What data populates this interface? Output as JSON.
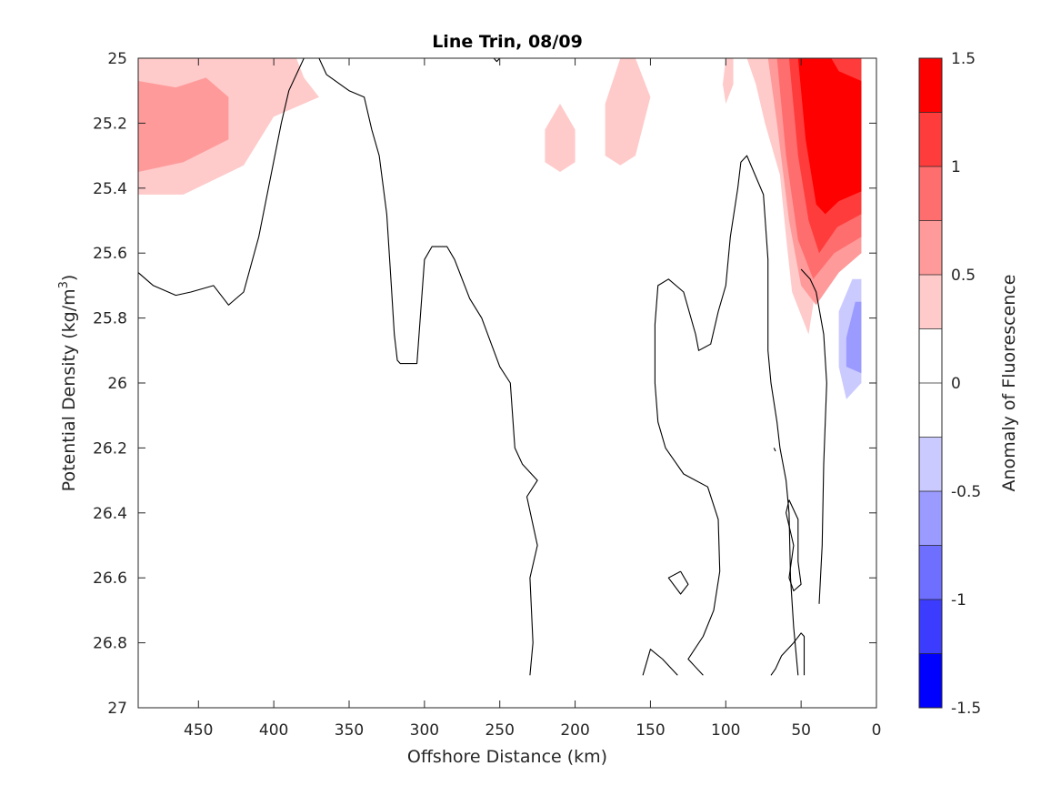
{
  "chart_data": {
    "type": "contour",
    "title": "Line Trin, 08/09",
    "xlabel": "Offshore Distance (km)",
    "ylabel": "Potential Density (kg/m",
    "ylabel_sup": "3",
    "ylabel_close": ")",
    "xlim": [
      490,
      0
    ],
    "x_reversed": true,
    "ylim": [
      25,
      27
    ],
    "y_reversed": true,
    "xticks": [
      450,
      400,
      350,
      300,
      250,
      200,
      150,
      100,
      50,
      0
    ],
    "yticks": [
      25,
      25.2,
      25.4,
      25.6,
      25.8,
      26,
      26.2,
      26.4,
      26.6,
      26.8,
      27
    ],
    "colorbar": {
      "label": "Anomaly of Fluorescence",
      "range": [
        -1.5,
        1.5
      ],
      "ticks": [
        1.5,
        1,
        0.5,
        0,
        -0.5,
        -1,
        -1.5
      ],
      "levels": [
        {
          "from": 1.25,
          "to": 1.5,
          "color": "#ff0000"
        },
        {
          "from": 1.0,
          "to": 1.25,
          "color": "#ff3c3c"
        },
        {
          "from": 0.75,
          "to": 1.0,
          "color": "#ff6e6e"
        },
        {
          "from": 0.5,
          "to": 0.75,
          "color": "#ff9a9a"
        },
        {
          "from": 0.25,
          "to": 0.5,
          "color": "#ffcaca"
        },
        {
          "from": 0.0,
          "to": 0.25,
          "color": "#ffffff"
        },
        {
          "from": -0.25,
          "to": 0.0,
          "color": "#ffffff"
        },
        {
          "from": -0.5,
          "to": -0.25,
          "color": "#cacaff"
        },
        {
          "from": -0.75,
          "to": -0.5,
          "color": "#9a9aff"
        },
        {
          "from": -1.0,
          "to": -0.75,
          "color": "#6e6eff"
        },
        {
          "from": -1.25,
          "to": -1.0,
          "color": "#3c3cff"
        },
        {
          "from": -1.5,
          "to": -1.25,
          "color": "#0000ff"
        }
      ]
    },
    "filled_regions": [
      {
        "level": 0.25,
        "color": "#ffcaca",
        "points": [
          [
            490,
            25
          ],
          [
            385,
            25
          ],
          [
            380,
            25.06
          ],
          [
            370,
            25.12
          ],
          [
            400,
            25.18
          ],
          [
            420,
            25.33
          ],
          [
            460,
            25.42
          ],
          [
            490,
            25.42
          ]
        ]
      },
      {
        "level": 0.5,
        "color": "#ff9a9a",
        "points": [
          [
            490,
            25.07
          ],
          [
            465,
            25.09
          ],
          [
            445,
            25.06
          ],
          [
            430,
            25.12
          ],
          [
            430,
            25.25
          ],
          [
            460,
            25.32
          ],
          [
            490,
            25.35
          ]
        ]
      },
      {
        "level": 0.25,
        "color": "#ffcaca",
        "points": [
          [
            220,
            25.22
          ],
          [
            210,
            25.14
          ],
          [
            200,
            25.22
          ],
          [
            200,
            25.32
          ],
          [
            210,
            25.35
          ],
          [
            220,
            25.32
          ]
        ]
      },
      {
        "level": 0.25,
        "color": "#ffcaca",
        "points": [
          [
            180,
            25.3
          ],
          [
            180,
            25.14
          ],
          [
            170,
            25.0
          ],
          [
            160,
            25.0
          ],
          [
            150,
            25.12
          ],
          [
            160,
            25.3
          ],
          [
            170,
            25.33
          ]
        ]
      },
      {
        "level": 0.25,
        "color": "#ffcaca",
        "points": [
          [
            95,
            25.0
          ],
          [
            100,
            25.0
          ],
          [
            102,
            25.08
          ],
          [
            100,
            25.14
          ],
          [
            95,
            25.08
          ]
        ]
      },
      {
        "level": 0.25,
        "color": "#ffcaca",
        "points": [
          [
            86,
            25.0
          ],
          [
            80,
            25.08
          ],
          [
            74,
            25.2
          ],
          [
            64,
            25.36
          ],
          [
            60,
            25.55
          ],
          [
            56,
            25.72
          ],
          [
            45,
            25.85
          ],
          [
            40,
            25.7
          ],
          [
            30,
            25.62
          ],
          [
            18,
            25.62
          ],
          [
            10,
            25.6
          ],
          [
            10,
            25.0
          ]
        ]
      },
      {
        "level": 0.5,
        "color": "#ff9a9a",
        "points": [
          [
            72,
            25.0
          ],
          [
            66,
            25.2
          ],
          [
            58,
            25.5
          ],
          [
            50,
            25.7
          ],
          [
            40,
            25.76
          ],
          [
            25,
            25.66
          ],
          [
            10,
            25.6
          ],
          [
            10,
            25.0
          ]
        ]
      },
      {
        "level": 0.75,
        "color": "#ff6e6e",
        "points": [
          [
            66,
            25.0
          ],
          [
            60,
            25.3
          ],
          [
            52,
            25.56
          ],
          [
            42,
            25.68
          ],
          [
            28,
            25.6
          ],
          [
            10,
            25.55
          ],
          [
            10,
            25.0
          ]
        ]
      },
      {
        "level": 1.0,
        "color": "#ff3c3c",
        "points": [
          [
            58,
            25.0
          ],
          [
            52,
            25.3
          ],
          [
            45,
            25.5
          ],
          [
            38,
            25.6
          ],
          [
            26,
            25.52
          ],
          [
            10,
            25.48
          ],
          [
            10,
            25.0
          ]
        ]
      },
      {
        "level": 1.25,
        "color": "#ff0000",
        "points": [
          [
            52,
            25.0
          ],
          [
            47,
            25.25
          ],
          [
            40,
            25.45
          ],
          [
            34,
            25.48
          ],
          [
            25,
            25.44
          ],
          [
            10,
            25.41
          ],
          [
            10,
            25.07
          ],
          [
            20,
            25.05
          ],
          [
            25,
            25.04
          ],
          [
            30,
            25.0
          ]
        ]
      },
      {
        "level": -0.25,
        "color": "#cacaff",
        "points": [
          [
            16,
            25.68
          ],
          [
            25,
            25.78
          ],
          [
            25,
            25.95
          ],
          [
            20,
            26.05
          ],
          [
            10,
            26.0
          ],
          [
            10,
            25.68
          ]
        ]
      },
      {
        "level": -0.5,
        "color": "#9a9aff",
        "points": [
          [
            14,
            25.75
          ],
          [
            20,
            25.86
          ],
          [
            20,
            25.95
          ],
          [
            10,
            25.97
          ],
          [
            10,
            25.75
          ]
        ]
      }
    ],
    "contour_lines": [
      {
        "level": 0,
        "points": [
          [
            490,
            25.66
          ],
          [
            480,
            25.7
          ],
          [
            465,
            25.73
          ],
          [
            455,
            25.72
          ],
          [
            440,
            25.7
          ],
          [
            430,
            25.76
          ],
          [
            420,
            25.72
          ],
          [
            410,
            25.55
          ],
          [
            395,
            25.2
          ],
          [
            390,
            25.1
          ],
          [
            380,
            25.0
          ],
          [
            370,
            25.0
          ],
          [
            365,
            25.05
          ],
          [
            350,
            25.1
          ],
          [
            340,
            25.12
          ],
          [
            335,
            25.22
          ],
          [
            330,
            25.3
          ],
          [
            325,
            25.48
          ],
          [
            322,
            25.7
          ],
          [
            320,
            25.85
          ],
          [
            318,
            25.93
          ],
          [
            316,
            25.94
          ],
          [
            305,
            25.94
          ],
          [
            300,
            25.62
          ],
          [
            295,
            25.58
          ],
          [
            285,
            25.58
          ],
          [
            280,
            25.62
          ],
          [
            270,
            25.74
          ],
          [
            262,
            25.8
          ],
          [
            250,
            25.95
          ],
          [
            243,
            26.0
          ],
          [
            240,
            26.2
          ],
          [
            235,
            26.25
          ],
          [
            225,
            26.3
          ],
          [
            232,
            26.35
          ],
          [
            225,
            26.5
          ],
          [
            230,
            26.6
          ],
          [
            228,
            26.8
          ],
          [
            230,
            26.9
          ]
        ]
      },
      {
        "level": 0,
        "points": [
          [
            155,
            26.9
          ],
          [
            150,
            26.82
          ],
          [
            142,
            26.85
          ],
          [
            132,
            26.9
          ]
        ]
      },
      {
        "level": 0,
        "points": [
          [
            130,
            26.58
          ],
          [
            125,
            26.62
          ],
          [
            130,
            26.65
          ],
          [
            138,
            26.6
          ],
          [
            130,
            26.58
          ]
        ]
      },
      {
        "level": 0,
        "points": [
          [
            115,
            26.9
          ],
          [
            125,
            26.85
          ],
          [
            115,
            26.78
          ],
          [
            108,
            26.7
          ],
          [
            104,
            26.58
          ],
          [
            105,
            26.42
          ],
          [
            112,
            26.32
          ],
          [
            120,
            26.3
          ],
          [
            128,
            26.28
          ],
          [
            140,
            26.2
          ],
          [
            145,
            26.12
          ],
          [
            147,
            26.0
          ],
          [
            147,
            25.82
          ],
          [
            145,
            25.7
          ],
          [
            138,
            25.68
          ],
          [
            128,
            25.72
          ],
          [
            120,
            25.85
          ],
          [
            118,
            25.9
          ],
          [
            110,
            25.88
          ],
          [
            105,
            25.78
          ],
          [
            100,
            25.7
          ],
          [
            97,
            25.55
          ],
          [
            92,
            25.4
          ],
          [
            90,
            25.32
          ],
          [
            86,
            25.3
          ],
          [
            75,
            25.42
          ],
          [
            72,
            25.62
          ],
          [
            72,
            25.9
          ],
          [
            70,
            26.0
          ],
          [
            66,
            26.12
          ],
          [
            64,
            26.2
          ],
          [
            60,
            26.3
          ],
          [
            58,
            26.4
          ],
          [
            57,
            26.6
          ],
          [
            55,
            26.75
          ],
          [
            52,
            26.9
          ]
        ]
      },
      {
        "level": 0,
        "points": [
          [
            48,
            26.9
          ],
          [
            48,
            26.78
          ],
          [
            50,
            26.77
          ],
          [
            55,
            26.8
          ],
          [
            63,
            26.84
          ],
          [
            67,
            26.88
          ],
          [
            70,
            26.9
          ]
        ]
      },
      {
        "level": 0,
        "points": [
          [
            58,
            26.36
          ],
          [
            52,
            26.42
          ],
          [
            52,
            26.55
          ],
          [
            50,
            26.62
          ],
          [
            55,
            26.64
          ],
          [
            58,
            26.6
          ],
          [
            55,
            26.5
          ],
          [
            60,
            26.4
          ],
          [
            58,
            26.36
          ]
        ]
      },
      {
        "level": 0,
        "points": [
          [
            38,
            26.68
          ],
          [
            36,
            26.5
          ],
          [
            35,
            26.25
          ],
          [
            33,
            26.0
          ],
          [
            35,
            25.85
          ],
          [
            40,
            25.72
          ],
          [
            44,
            25.68
          ],
          [
            50,
            25.65
          ]
        ]
      },
      {
        "level": 0,
        "points": [
          [
            240,
            25.0
          ],
          [
            250,
            25.0
          ],
          [
            252,
            25.01
          ],
          [
            254,
            25.0
          ]
        ]
      },
      {
        "level": 0,
        "points": [
          [
            68,
            26.2
          ],
          [
            67,
            26.21
          ]
        ]
      }
    ]
  }
}
